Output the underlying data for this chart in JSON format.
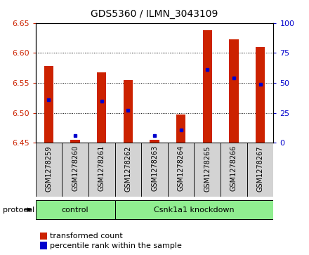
{
  "title": "GDS5360 / ILMN_3043109",
  "samples": [
    "GSM1278259",
    "GSM1278260",
    "GSM1278261",
    "GSM1278262",
    "GSM1278263",
    "GSM1278264",
    "GSM1278265",
    "GSM1278266",
    "GSM1278267"
  ],
  "red_values": [
    6.578,
    6.455,
    6.568,
    6.555,
    6.455,
    6.497,
    6.638,
    6.623,
    6.61
  ],
  "blue_values": [
    6.522,
    6.462,
    6.52,
    6.504,
    6.462,
    6.472,
    6.572,
    6.558,
    6.548
  ],
  "ylim_left": [
    6.45,
    6.65
  ],
  "ylim_right": [
    0,
    100
  ],
  "yticks_left": [
    6.45,
    6.5,
    6.55,
    6.6,
    6.65
  ],
  "yticks_right": [
    0,
    25,
    50,
    75,
    100
  ],
  "base_value": 6.45,
  "group_boundaries": [
    {
      "label": "control",
      "start": 0,
      "end": 3
    },
    {
      "label": "Csnk1a1 knockdown",
      "start": 3,
      "end": 9
    }
  ],
  "group_color": "#90EE90",
  "protocol_label": "protocol",
  "legend_red": "transformed count",
  "legend_blue": "percentile rank within the sample",
  "bar_color": "#CC2200",
  "blue_color": "#0000CC",
  "bar_width": 0.35,
  "background_color": "#FFFFFF",
  "plot_bg_color": "#FFFFFF",
  "axis_color_left": "#CC2200",
  "axis_color_right": "#0000CC",
  "tick_fontsize": 8,
  "title_fontsize": 10,
  "label_fontsize": 8,
  "sample_label_fontsize": 7
}
